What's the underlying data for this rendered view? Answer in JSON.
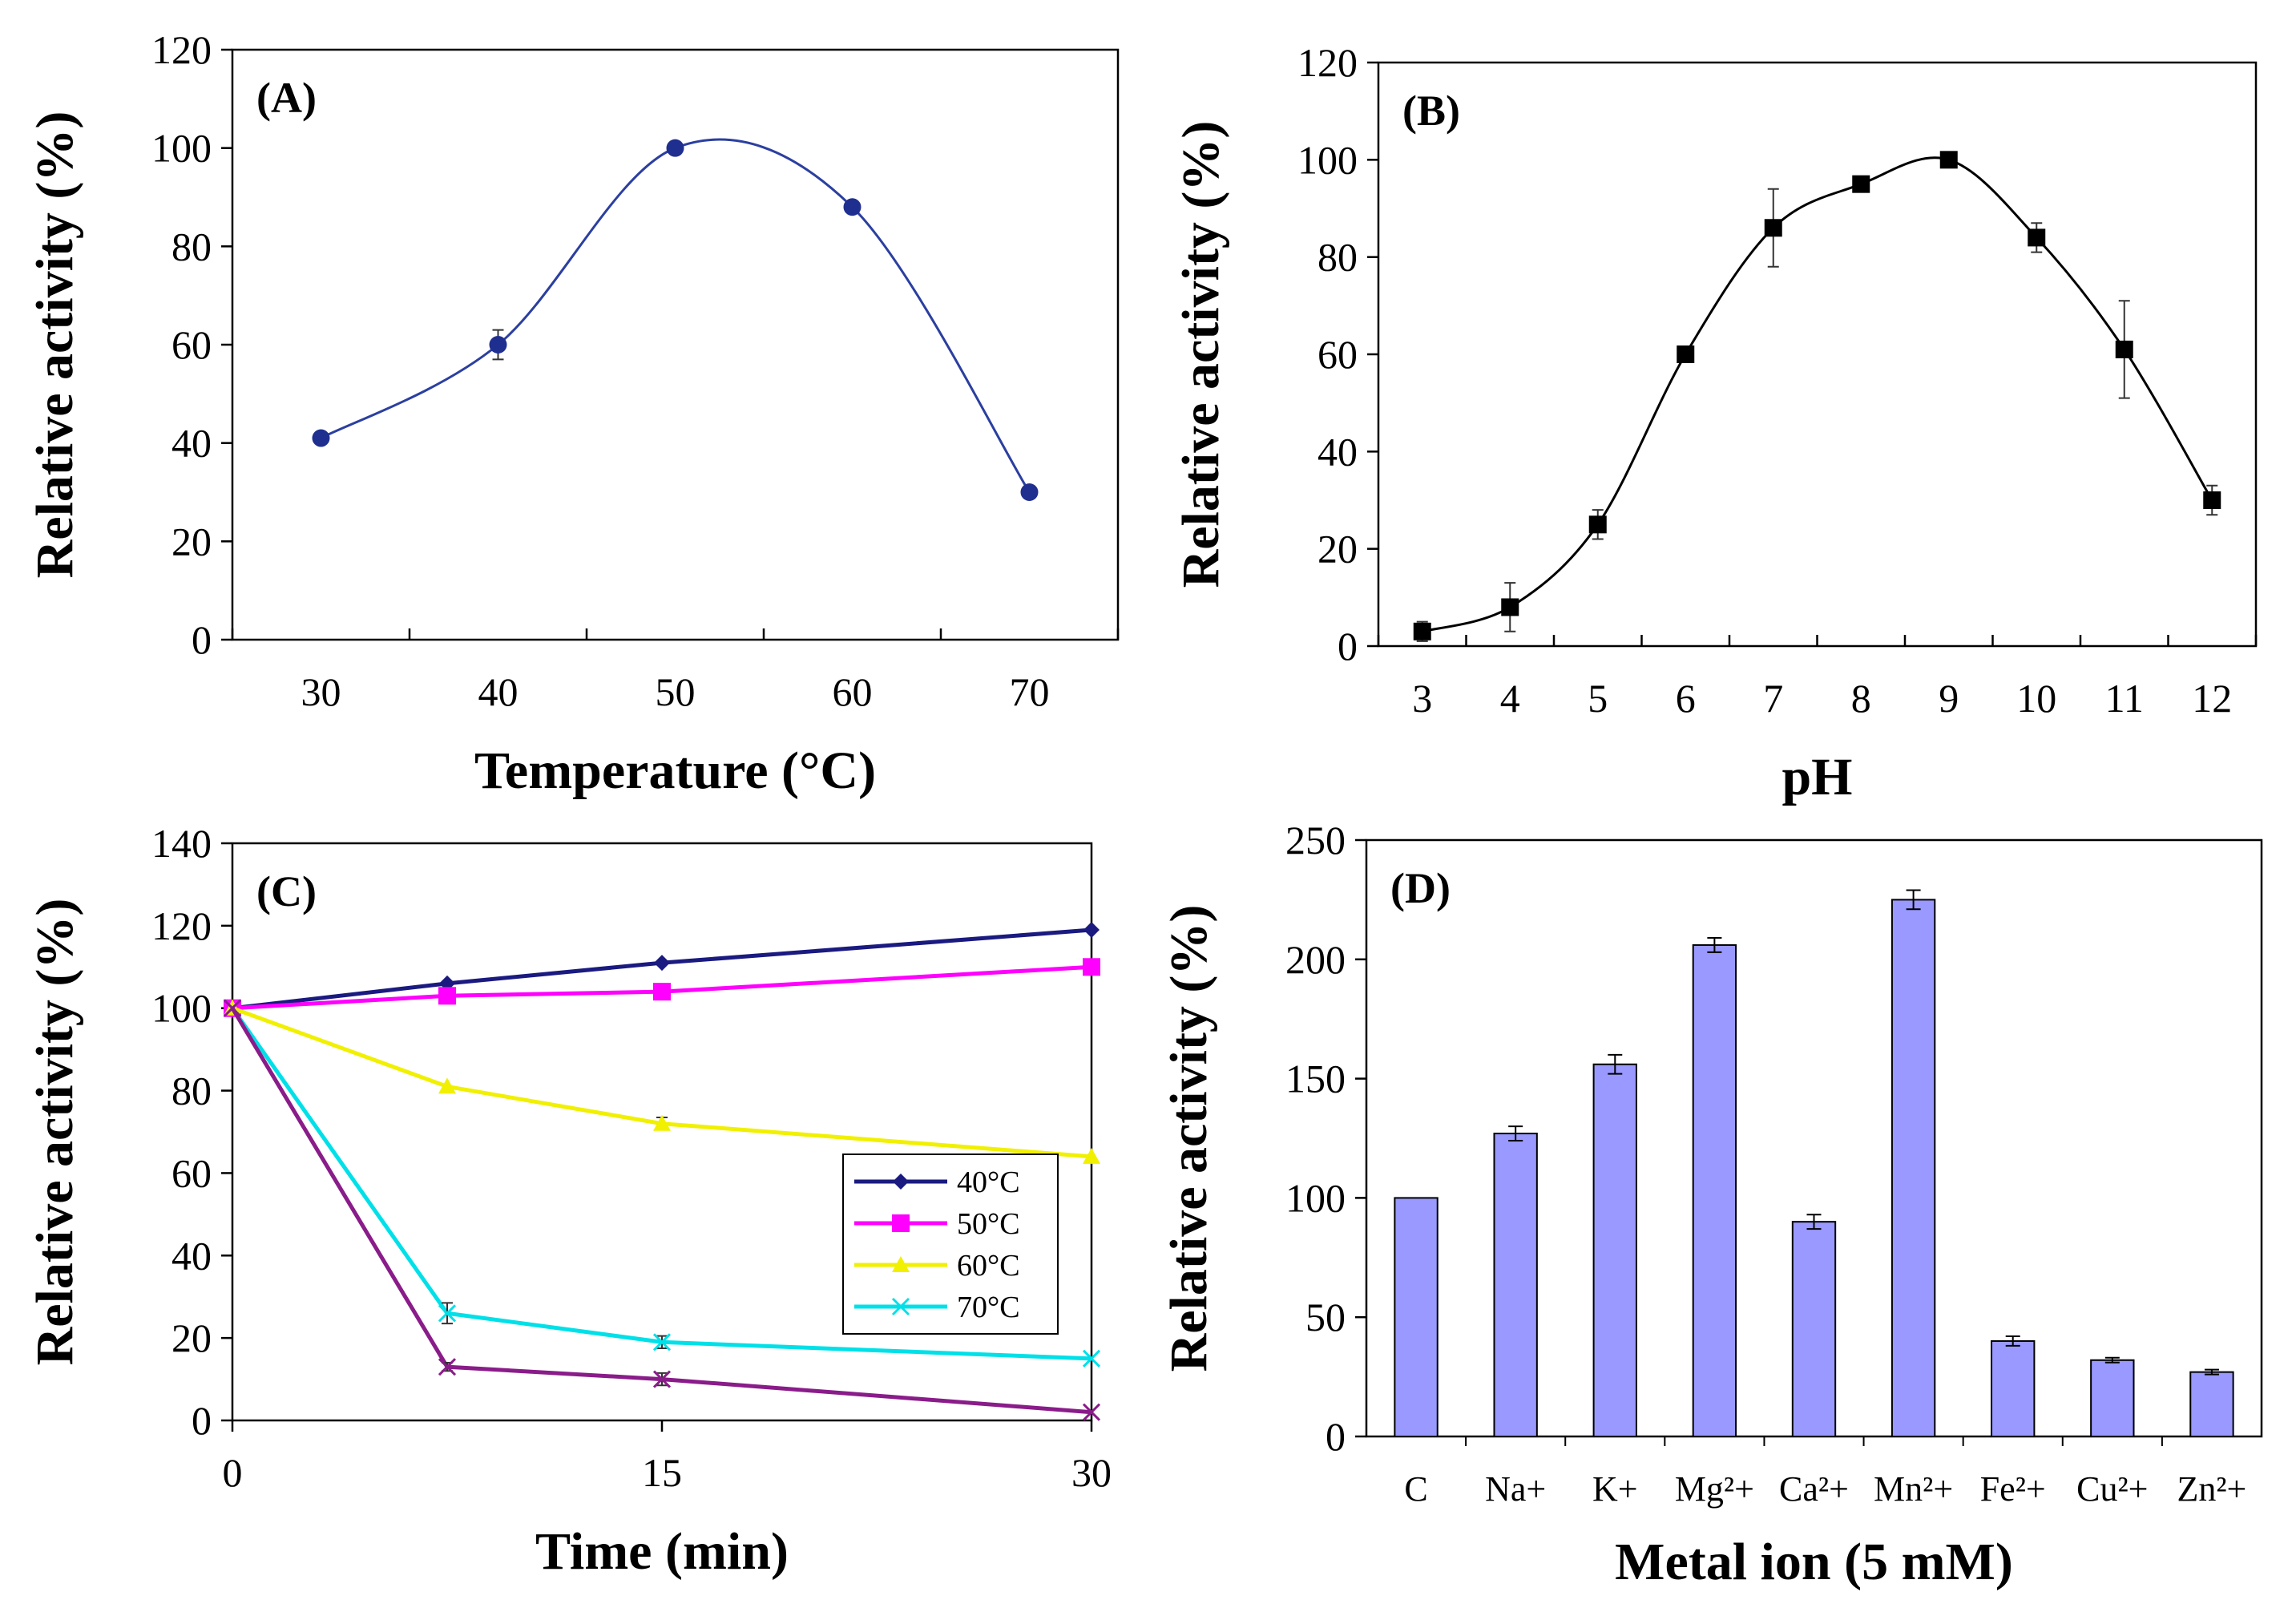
{
  "chart_data": [
    {
      "id": "A",
      "type": "line",
      "panel_label": "(A)",
      "xlabel": "Temperature (°C)",
      "ylabel": "Relative activity (%)",
      "xlim": [
        25,
        75
      ],
      "ylim": [
        0,
        120
      ],
      "xticks": [
        "30",
        "40",
        "50",
        "60",
        "70"
      ],
      "yticks": [
        "0",
        "20",
        "40",
        "60",
        "80",
        "100",
        "120"
      ],
      "smooth": true,
      "series": [
        {
          "name": "activity",
          "color": "#1f2f8f",
          "line_color": "#2b3fa0",
          "marker": "circle",
          "x": [
            30,
            40,
            50,
            60,
            70
          ],
          "y": [
            41,
            60,
            100,
            88,
            30
          ],
          "err": [
            0,
            3,
            0,
            0,
            0
          ]
        }
      ]
    },
    {
      "id": "B",
      "type": "line",
      "panel_label": "(B)",
      "xlabel": "pH",
      "ylabel": "Relative activity (%)",
      "xlim": [
        2.5,
        12.5
      ],
      "ylim": [
        0,
        120
      ],
      "xticks": [
        "3",
        "4",
        "5",
        "6",
        "7",
        "8",
        "9",
        "10",
        "11",
        "12"
      ],
      "yticks": [
        "0",
        "20",
        "40",
        "60",
        "80",
        "100",
        "120"
      ],
      "smooth": true,
      "series": [
        {
          "name": "activity",
          "color": "#000000",
          "line_color": "#000000",
          "marker": "square",
          "x": [
            3,
            4,
            5,
            6,
            7,
            8,
            9,
            10,
            11,
            12
          ],
          "y": [
            3,
            8,
            25,
            60,
            86,
            95,
            100,
            84,
            61,
            30
          ],
          "err": [
            2,
            5,
            3,
            0,
            8,
            0,
            0,
            3,
            10,
            3
          ]
        }
      ]
    },
    {
      "id": "C",
      "type": "line",
      "panel_label": "(C)",
      "xlabel": "Time (min)",
      "ylabel": "Relative activity (%)",
      "xlim": [
        0,
        30
      ],
      "ylim": [
        0,
        140
      ],
      "xticks": [
        "0",
        "15",
        "30"
      ],
      "yticks": [
        "0",
        "20",
        "40",
        "60",
        "80",
        "100",
        "120",
        "140"
      ],
      "smooth": false,
      "legend_position": "lower-right",
      "legend": [
        "40°C",
        "50°C",
        "60°C",
        "70°C"
      ],
      "series": [
        {
          "name": "40°C",
          "color": "#1a1a80",
          "marker": "diamond",
          "x": [
            0,
            7.5,
            15,
            30
          ],
          "y": [
            100,
            106,
            111,
            119
          ],
          "err": [
            0,
            0,
            0,
            0
          ],
          "in_legend": true
        },
        {
          "name": "50°C",
          "color": "#ff00ff",
          "marker": "square",
          "x": [
            0,
            7.5,
            15,
            30
          ],
          "y": [
            100,
            103,
            104,
            110
          ],
          "err": [
            0,
            0,
            0,
            0
          ],
          "in_legend": true
        },
        {
          "name": "60°C",
          "color": "#f0f000",
          "marker": "triangle",
          "x": [
            0,
            7.5,
            15,
            30
          ],
          "y": [
            100,
            81,
            72,
            64
          ],
          "err": [
            0,
            0,
            1.5,
            0
          ],
          "in_legend": true
        },
        {
          "name": "70°C",
          "color": "#00e0e8",
          "marker": "x",
          "x": [
            0,
            7.5,
            15,
            30
          ],
          "y": [
            100,
            26,
            19,
            15
          ],
          "err": [
            0,
            2.5,
            1.5,
            0
          ],
          "in_legend": true
        },
        {
          "name": "",
          "color": "#8a1c8a",
          "marker": "x",
          "x": [
            0,
            7.5,
            15,
            30
          ],
          "y": [
            100,
            13,
            10,
            2
          ],
          "err": [
            0,
            1,
            1.5,
            0
          ],
          "in_legend": false
        }
      ]
    },
    {
      "id": "D",
      "type": "bar",
      "panel_label": "(D)",
      "xlabel": "Metal ion (5 mM)",
      "ylabel": "Relative activity (%)",
      "ylim": [
        0,
        250
      ],
      "yticks": [
        "0",
        "50",
        "100",
        "150",
        "200",
        "250"
      ],
      "bar_color": "#9999ff",
      "categories": [
        "C",
        "Na+",
        "K+",
        "Mg²+",
        "Ca²+",
        "Mn²+",
        "Fe²+",
        "Cu²+",
        "Zn²+"
      ],
      "values": [
        100,
        127,
        156,
        206,
        90,
        225,
        40,
        32,
        27
      ],
      "err": [
        0,
        3,
        4,
        3,
        3,
        4,
        2,
        1,
        1
      ]
    }
  ]
}
